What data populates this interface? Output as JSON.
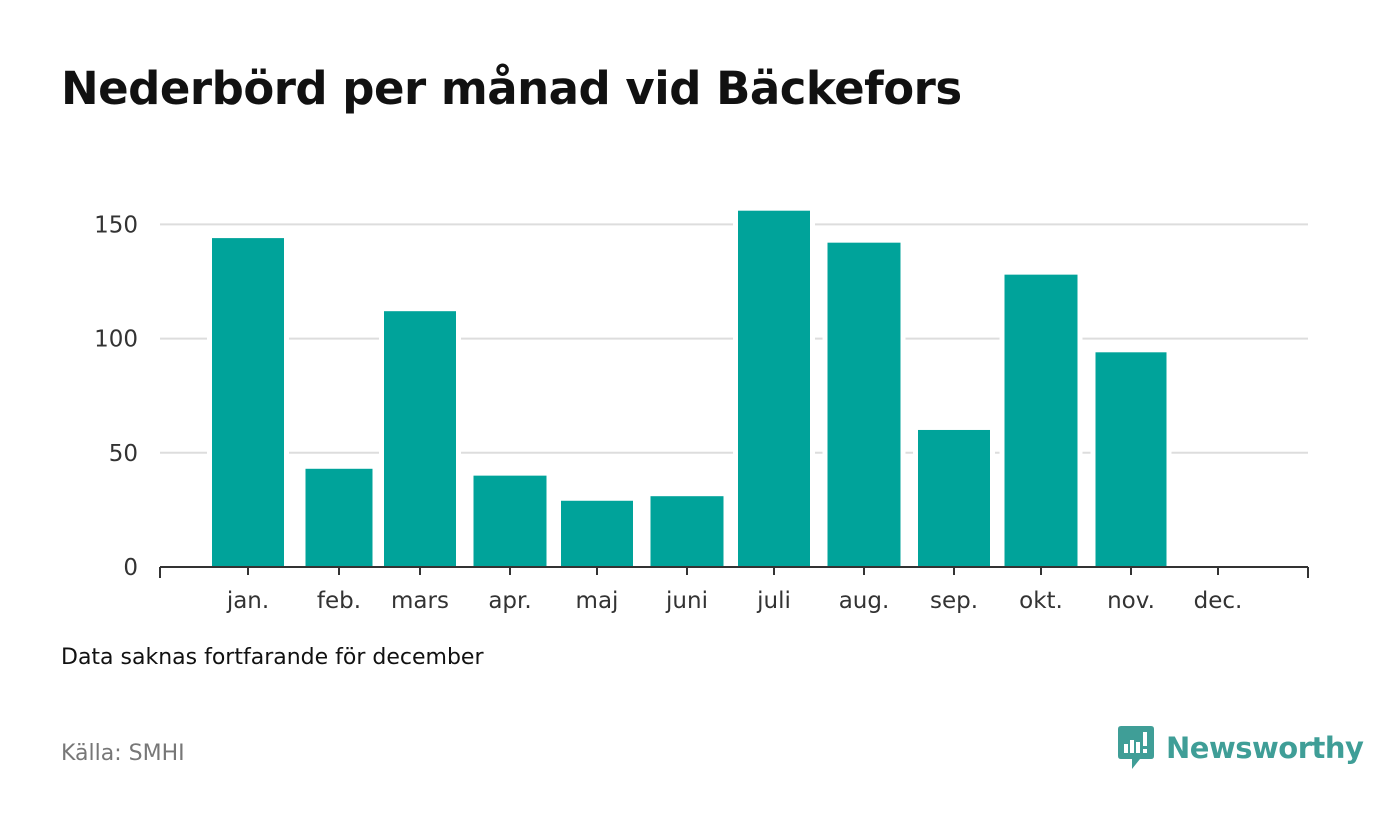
{
  "title": "Nederbörd per månad vid Bäckefors",
  "note": "Data saknas fortfarande för december",
  "source": "Källa: SMHI",
  "logo": {
    "text": "Newsworthy",
    "icon": "newsworthy-logo-icon"
  },
  "colors": {
    "bar": "#00a39a",
    "brand": "#3f9e97",
    "grid": "#dddddd",
    "axis": "#333333"
  },
  "chart_data": {
    "type": "bar",
    "categories": [
      "jan.",
      "feb.",
      "mars",
      "apr.",
      "maj",
      "juni",
      "juli",
      "aug.",
      "sep.",
      "okt.",
      "nov.",
      "dec."
    ],
    "values": [
      144,
      43,
      112,
      40,
      29,
      31,
      156,
      142,
      60,
      128,
      94,
      null
    ],
    "yticks": [
      0,
      50,
      100,
      150
    ],
    "ylim": [
      0,
      165
    ],
    "grid": true,
    "legend": "none"
  }
}
